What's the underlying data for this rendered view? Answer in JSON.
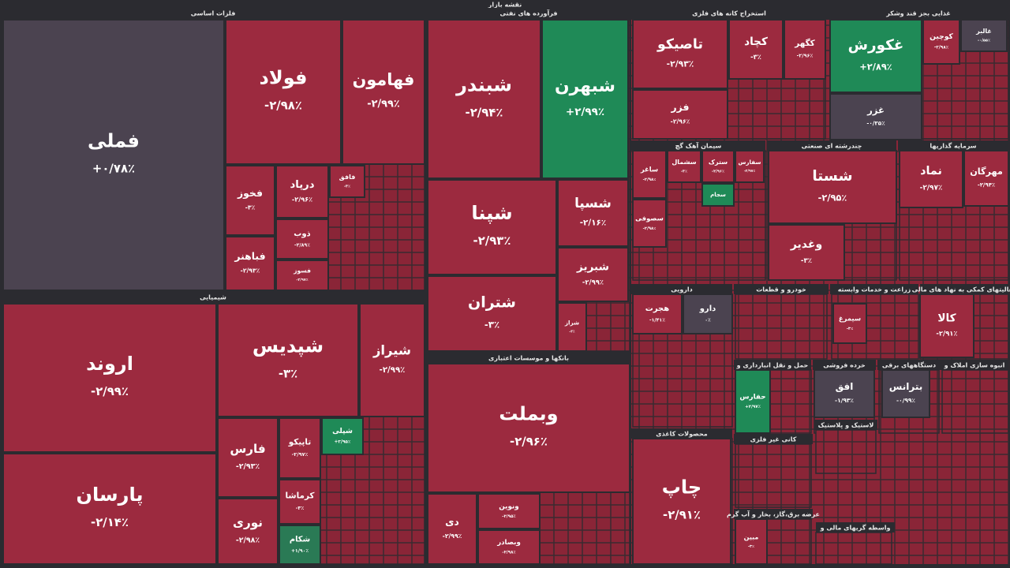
{
  "header": {
    "title": "نقشه بازار"
  },
  "sectors": [
    {
      "title": "فلزات اساسی",
      "tiles": [
        {
          "name": "فملی",
          "change": "+۰/۷۸٪",
          "color": "#4b4350"
        },
        {
          "name": "فولاد",
          "change": "-۲/۹۸٪",
          "color": "#9c2a3f"
        },
        {
          "name": "فهامون",
          "change": "-۲/۹۹٪",
          "color": "#9c2a3f"
        },
        {
          "name": "فخوز",
          "change": "-۳٪",
          "color": "#9c2a3f"
        },
        {
          "name": "فباهنر",
          "change": "-۲/۹۳٪",
          "color": "#9c2a3f"
        },
        {
          "name": "درپاد",
          "change": "-۲/۹۶٪",
          "color": "#9c2a3f"
        },
        {
          "name": "ذوب",
          "change": "-۲/۸۹٪",
          "color": "#9c2a3f"
        },
        {
          "name": "فسوز",
          "change": "-۲/۹۷٪",
          "color": "#9c2a3f"
        },
        {
          "name": "فافق",
          "change": "-۳٪",
          "color": "#9c2a3f"
        }
      ]
    },
    {
      "title": "شیمیایی",
      "tiles": [
        {
          "name": "اروند",
          "change": "-۲/۹۹٪",
          "color": "#9c2a3f"
        },
        {
          "name": "پارسان",
          "change": "-۲/۱۴٪",
          "color": "#9c2a3f"
        },
        {
          "name": "شپدیس",
          "change": "-۳٪",
          "color": "#9c2a3f"
        },
        {
          "name": "شیراز",
          "change": "-۲/۹۹٪",
          "color": "#9c2a3f"
        },
        {
          "name": "فارس",
          "change": "-۲/۹۳٪",
          "color": "#9c2a3f"
        },
        {
          "name": "نوری",
          "change": "-۲/۹۸٪",
          "color": "#9c2a3f"
        },
        {
          "name": "تاپیکو",
          "change": "-۲/۹۷٪",
          "color": "#9c2a3f"
        },
        {
          "name": "کرماشا",
          "change": "-۳٪",
          "color": "#9c2a3f"
        },
        {
          "name": "شکام",
          "change": "+۱/۹۰٪",
          "color": "#2a7a55"
        },
        {
          "name": "شپلی",
          "change": "+۲/۹۵٪",
          "color": "#1f8a57"
        }
      ]
    },
    {
      "title": "فرآورده های نفتی",
      "tiles": [
        {
          "name": "شبندر",
          "change": "-۲/۹۴٪",
          "color": "#9c2a3f"
        },
        {
          "name": "شبهرن",
          "change": "+۲/۹۹٪",
          "color": "#1f8a57"
        },
        {
          "name": "شپنا",
          "change": "-۲/۹۳٪",
          "color": "#9c2a3f"
        },
        {
          "name": "شسپا",
          "change": "-۲/۱۶٪",
          "color": "#9c2a3f"
        },
        {
          "name": "شتران",
          "change": "-۳٪",
          "color": "#9c2a3f"
        },
        {
          "name": "شبریز",
          "change": "-۲/۹۹٪",
          "color": "#9c2a3f"
        },
        {
          "name": "شراز",
          "change": "-۳٪",
          "color": "#9c2a3f"
        }
      ]
    },
    {
      "title": "بانکها و موسسات اعتباری",
      "tiles": [
        {
          "name": "وبملت",
          "change": "-۲/۹۶٪",
          "color": "#9c2a3f"
        },
        {
          "name": "دی",
          "change": "-۲/۹۹٪",
          "color": "#9c2a3f"
        },
        {
          "name": "ونوین",
          "change": "-۲/۹۵٪",
          "color": "#9c2a3f"
        },
        {
          "name": "وبصادر",
          "change": "-۲/۹۸٪",
          "color": "#9c2a3f"
        }
      ]
    },
    {
      "title": "استخراج کانه های فلزی",
      "tiles": [
        {
          "name": "تاصیکو",
          "change": "-۲/۹۳٪",
          "color": "#9c2a3f"
        },
        {
          "name": "کچاد",
          "change": "-۳٪",
          "color": "#9c2a3f"
        },
        {
          "name": "کگهر",
          "change": "-۲/۹۶٪",
          "color": "#9c2a3f"
        },
        {
          "name": "فزر",
          "change": "-۲/۹۶٪",
          "color": "#9c2a3f"
        }
      ]
    },
    {
      "title": "غذایی بجز قند وشکر",
      "tiles": [
        {
          "name": "غکورش",
          "change": "+۲/۸۹٪",
          "color": "#1f8a57"
        },
        {
          "name": "غزر",
          "change": "-۰/۳۵٪",
          "color": "#4b4350"
        },
        {
          "name": "کوچین",
          "change": "-۲/۹۸٪",
          "color": "#9c2a3f"
        },
        {
          "name": "غالبر",
          "change": "-۰/۵۵٪",
          "color": "#4b4350"
        }
      ]
    },
    {
      "title": "سیمان آهک گچ",
      "tiles": [
        {
          "name": "ساغر",
          "change": "-۲/۹۸٪",
          "color": "#9c2a3f"
        },
        {
          "name": "سشمال",
          "change": "-۳٪",
          "color": "#9c2a3f"
        },
        {
          "name": "سترک",
          "change": "-۲/۹۶٪",
          "color": "#9c2a3f"
        },
        {
          "name": "سفارس",
          "change": "-۲/۹۷٪",
          "color": "#9c2a3f"
        },
        {
          "name": "سصوفی",
          "change": "-۲/۹۸٪",
          "color": "#9c2a3f"
        },
        {
          "name": "سجام",
          "change": "+۲/۹۲٪",
          "color": "#1f8a57"
        }
      ]
    },
    {
      "title": "چندرشته ای صنعتی",
      "tiles": [
        {
          "name": "شستا",
          "change": "-۲/۹۵٪",
          "color": "#9c2a3f"
        },
        {
          "name": "وغدیر",
          "change": "-۳٪",
          "color": "#9c2a3f"
        }
      ]
    },
    {
      "title": "سرمایه گذاریها",
      "tiles": [
        {
          "name": "نماد",
          "change": "-۲/۹۷٪",
          "color": "#9c2a3f"
        },
        {
          "name": "مهرگان",
          "change": "-۲/۹۴٪",
          "color": "#9c2a3f"
        }
      ]
    },
    {
      "title": "دارویی",
      "tiles": [
        {
          "name": "هجرت",
          "change": "-۱/۴۱٪",
          "color": "#9c2a3f"
        },
        {
          "name": "دارو",
          "change": "۰٪",
          "color": "#4b4350"
        }
      ]
    },
    {
      "title": "خودرو و قطعات",
      "tiles": []
    },
    {
      "title": "زراعت و خدمات وابسته",
      "tiles": [
        {
          "name": "سیمرغ",
          "change": "-۳٪",
          "color": "#9c2a3f"
        }
      ]
    },
    {
      "title": "فعالیتهای کمکی به نهاد های مالی",
      "tiles": [
        {
          "name": "کالا",
          "change": "-۲/۹۱٪",
          "color": "#9c2a3f"
        }
      ]
    },
    {
      "title": "محصولات کاغذی",
      "tiles": [
        {
          "name": "چاپ",
          "change": "-۲/۹۱٪",
          "color": "#9c2a3f"
        }
      ]
    },
    {
      "title": "حمل و نقل انبارداری و",
      "tiles": [
        {
          "name": "حفارس",
          "change": "+۲/۹۷٪",
          "color": "#1f8a57"
        }
      ]
    },
    {
      "title": "خرده فروشی",
      "tiles": [
        {
          "name": "افق",
          "change": "-۱/۹۳٪",
          "color": "#4b4350"
        }
      ]
    },
    {
      "title": "دستگاههای برقی",
      "tiles": [
        {
          "name": "بترانس",
          "change": "-۰/۹۹٪",
          "color": "#4b4350"
        }
      ]
    },
    {
      "title": "انبوه سازی املاک و",
      "tiles": []
    },
    {
      "title": "کانی غیر فلزی",
      "tiles": []
    },
    {
      "title": "لاستیک و پلاستیک",
      "tiles": []
    },
    {
      "title": "عرضه برق،گاز، بخار و آب گرم",
      "tiles": [
        {
          "name": "مبین",
          "change": "-۳٪",
          "color": "#9c2a3f"
        }
      ]
    },
    {
      "title": "واسطه گریهای مالی و",
      "tiles": []
    }
  ]
}
